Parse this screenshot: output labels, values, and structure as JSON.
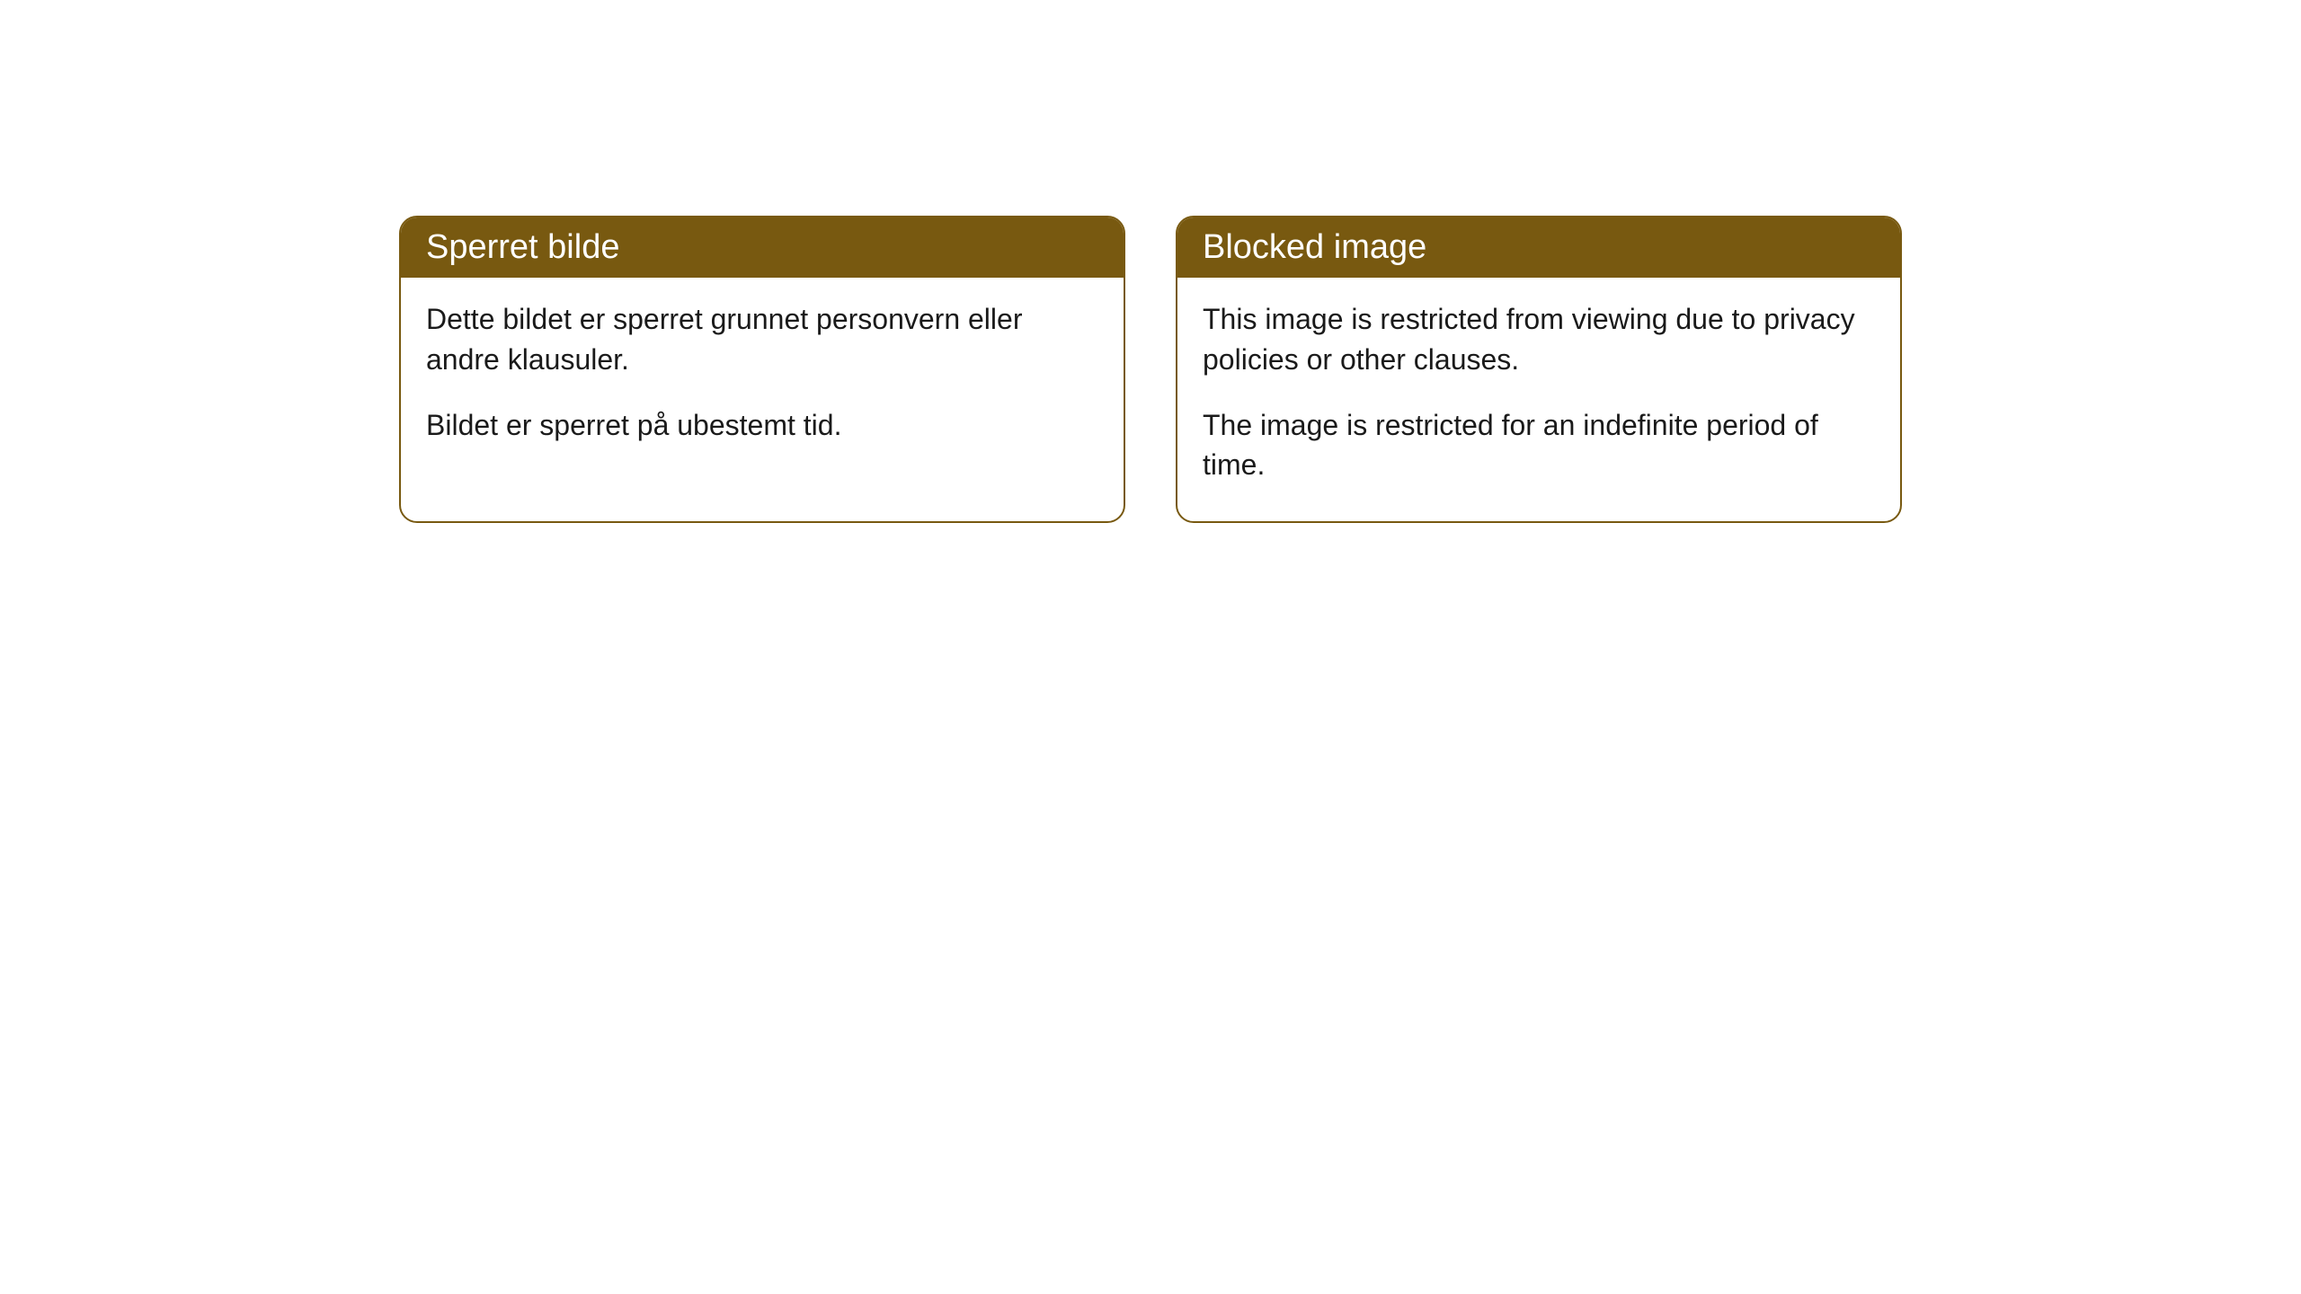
{
  "cards": [
    {
      "title": "Sperret bilde",
      "paragraph1": "Dette bildet er sperret grunnet personvern eller andre klausuler.",
      "paragraph2": "Bildet er sperret på ubestemt tid."
    },
    {
      "title": "Blocked image",
      "paragraph1": "This image is restricted from viewing due to privacy policies or other clauses.",
      "paragraph2": "The image is restricted for an indefinite period of time."
    }
  ],
  "styling": {
    "header_bg_color": "#785910",
    "header_text_color": "#ffffff",
    "border_color": "#785910",
    "body_bg_color": "#ffffff",
    "body_text_color": "#1a1a1a",
    "border_radius": "20px",
    "header_fontsize": "38px",
    "body_fontsize": "32px"
  }
}
